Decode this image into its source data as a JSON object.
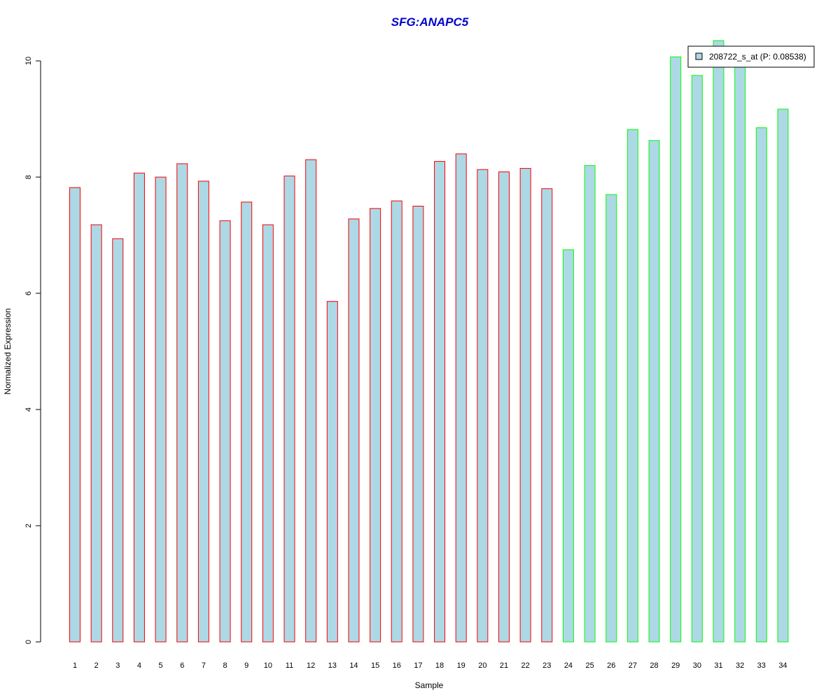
{
  "chart_data": {
    "type": "bar",
    "title": "SFG:ANAPC5",
    "xlabel": "Sample",
    "ylabel": "Normalized Expression",
    "ylim": [
      0,
      10
    ],
    "y_ticks": [
      "0",
      "2",
      "4",
      "6",
      "8",
      "10"
    ],
    "grid": false,
    "bar_fill": "#add8e6",
    "categories": [
      "1",
      "2",
      "3",
      "4",
      "5",
      "6",
      "7",
      "8",
      "9",
      "10",
      "11",
      "12",
      "13",
      "14",
      "15",
      "16",
      "17",
      "18",
      "19",
      "20",
      "21",
      "22",
      "23",
      "24",
      "25",
      "26",
      "27",
      "28",
      "29",
      "30",
      "31",
      "32",
      "33",
      "34"
    ],
    "values": [
      7.82,
      7.18,
      6.94,
      8.07,
      8.0,
      8.23,
      7.93,
      7.25,
      7.57,
      7.18,
      8.02,
      8.3,
      5.86,
      7.28,
      7.46,
      7.59,
      7.5,
      8.27,
      8.4,
      8.13,
      8.09,
      8.15,
      7.8,
      6.75,
      8.2,
      7.7,
      8.82,
      8.63,
      10.07,
      9.75,
      10.35,
      9.95,
      8.85,
      9.17
    ],
    "group_colors": {
      "red_samples": "#ff0000",
      "green_samples": "#00ff00"
    },
    "group_split_after_index": 23,
    "legend": {
      "label": "208722_s_at (P: 0.08538)",
      "swatch_color": "#add8e6",
      "placement": "top-right"
    }
  }
}
